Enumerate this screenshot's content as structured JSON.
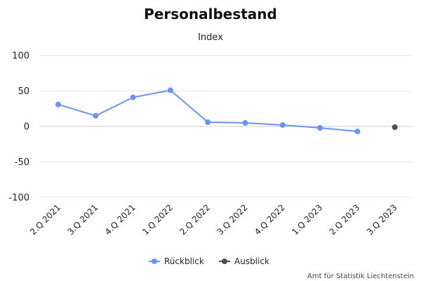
{
  "chart_data": {
    "type": "line",
    "title": "Personalbestand",
    "subtitle": "Index",
    "xlabel": "",
    "ylabel": "",
    "categories": [
      "2.Q 2021",
      "3.Q 2021",
      "4.Q 2021",
      "1.Q 2022",
      "2.Q 2022",
      "3.Q 2022",
      "4.Q 2022",
      "1.Q 2023",
      "2.Q 2023",
      "3.Q 2023"
    ],
    "ylim": [
      -100,
      100
    ],
    "yticks": [
      100,
      50,
      0,
      -50,
      -100
    ],
    "yticks_labels": [
      "100",
      "50",
      "0",
      "-50",
      "-100"
    ],
    "grid": true,
    "legend_position": "bottom-center",
    "series": [
      {
        "name": "Rückblick",
        "color": "#6a93f2",
        "values": [
          31,
          15,
          41,
          51,
          6,
          5,
          2,
          -2,
          -7,
          null
        ]
      },
      {
        "name": "Ausblick",
        "color": "#4d4d4d",
        "values": [
          null,
          null,
          null,
          null,
          null,
          null,
          null,
          null,
          null,
          -1
        ]
      }
    ]
  },
  "credit": "Amt für Statistik Liechtenstein"
}
